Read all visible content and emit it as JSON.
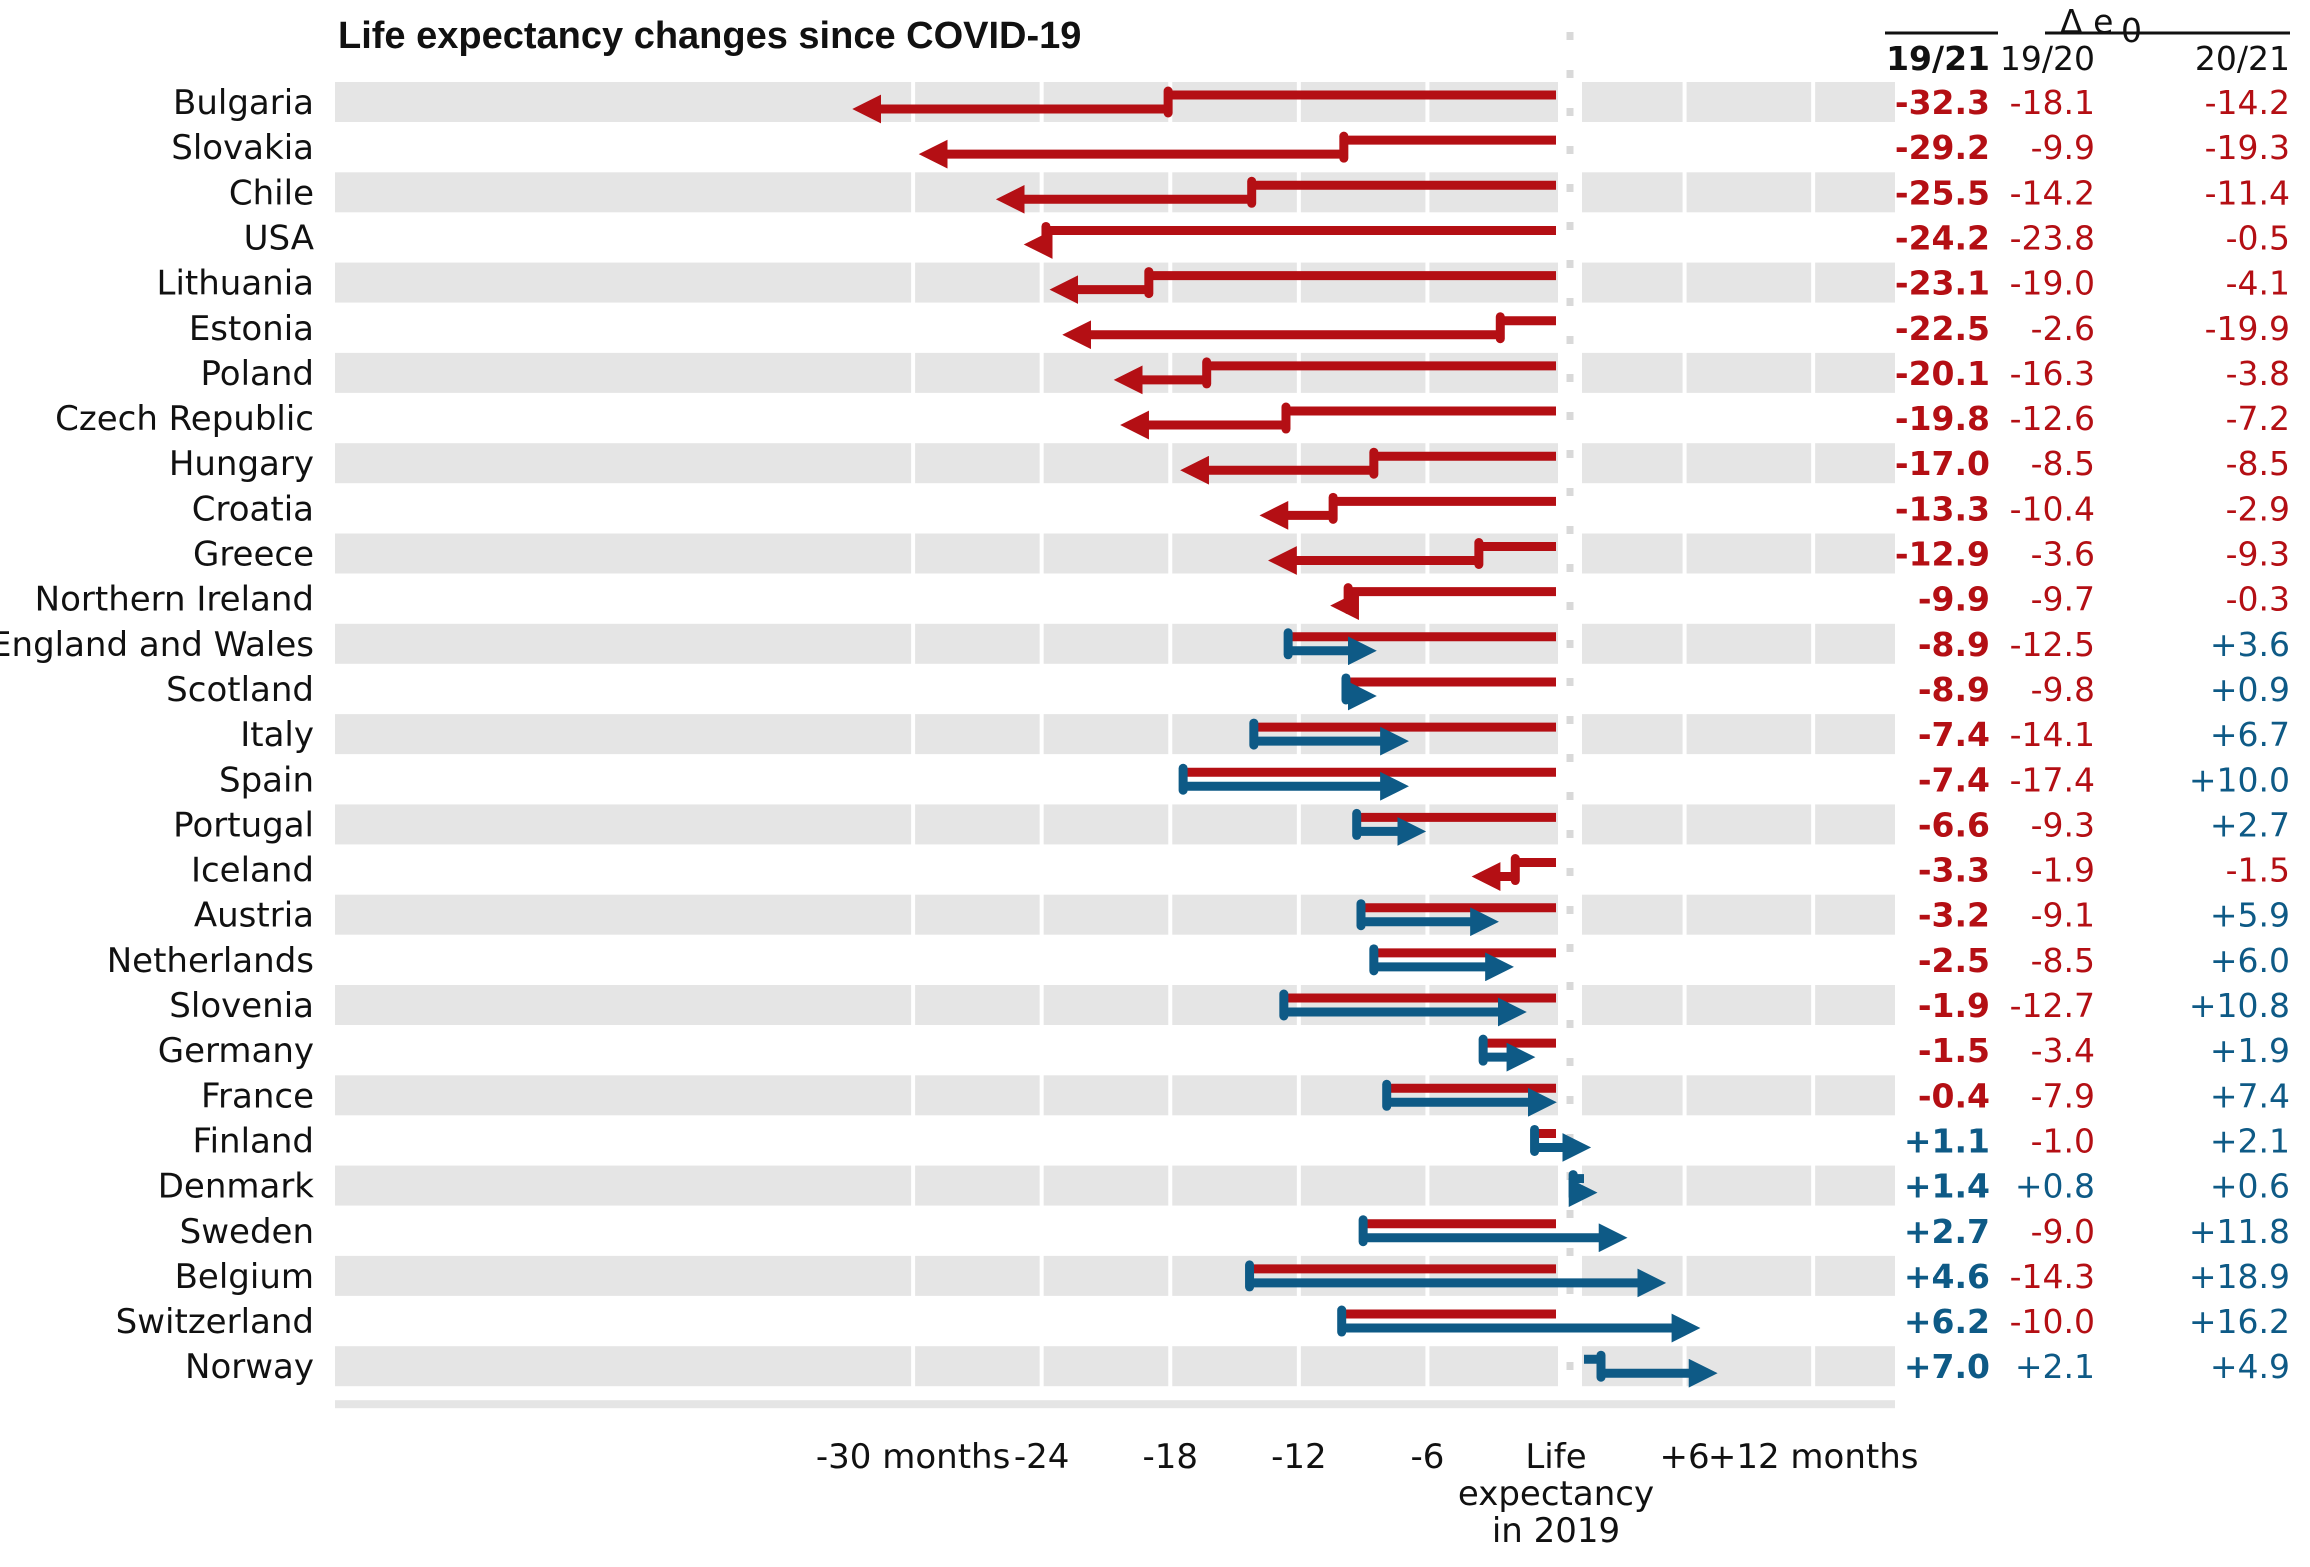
{
  "chart_data": {
    "type": "bar",
    "title": "Life expectancy changes since COVID-19",
    "x_ticks": [
      "-30 months",
      "-24",
      "-18",
      "-12",
      "-6",
      "+6",
      "+12 months"
    ],
    "x_tick_values": [
      -30,
      -24,
      -18,
      -12,
      -6,
      6,
      12
    ],
    "center_label": [
      "Life",
      "expectancy",
      "in 2019"
    ],
    "xlim": [
      -34,
      20
    ],
    "table_headers": {
      "group": "Δ e",
      "group_sub": "0",
      "total": "19/21",
      "first": "19/20",
      "second": "20/21"
    },
    "colors": {
      "decrease": "#b40f14",
      "increase": "#0e5a86",
      "stripe": "#e5e5e5",
      "grid": "#ffffff"
    },
    "countries": [
      {
        "name": "Bulgaria",
        "total": "-32.3",
        "d1920": "-18.1",
        "d2021": "-14.2"
      },
      {
        "name": "Slovakia",
        "total": "-29.2",
        "d1920": "-9.9",
        "d2021": "-19.3"
      },
      {
        "name": "Chile",
        "total": "-25.5",
        "d1920": "-14.2",
        "d2021": "-11.4"
      },
      {
        "name": "USA",
        "total": "-24.2",
        "d1920": "-23.8",
        "d2021": "-0.5"
      },
      {
        "name": "Lithuania",
        "total": "-23.1",
        "d1920": "-19.0",
        "d2021": "-4.1"
      },
      {
        "name": "Estonia",
        "total": "-22.5",
        "d1920": "-2.6",
        "d2021": "-19.9"
      },
      {
        "name": "Poland",
        "total": "-20.1",
        "d1920": "-16.3",
        "d2021": "-3.8"
      },
      {
        "name": "Czech Republic",
        "total": "-19.8",
        "d1920": "-12.6",
        "d2021": "-7.2"
      },
      {
        "name": "Hungary",
        "total": "-17.0",
        "d1920": "-8.5",
        "d2021": "-8.5"
      },
      {
        "name": "Croatia",
        "total": "-13.3",
        "d1920": "-10.4",
        "d2021": "-2.9"
      },
      {
        "name": "Greece",
        "total": "-12.9",
        "d1920": "-3.6",
        "d2021": "-9.3"
      },
      {
        "name": "Northern Ireland",
        "total": "-9.9",
        "d1920": "-9.7",
        "d2021": "-0.3"
      },
      {
        "name": "England and Wales",
        "total": "-8.9",
        "d1920": "-12.5",
        "d2021": "+3.6"
      },
      {
        "name": "Scotland",
        "total": "-8.9",
        "d1920": "-9.8",
        "d2021": "+0.9"
      },
      {
        "name": "Italy",
        "total": "-7.4",
        "d1920": "-14.1",
        "d2021": "+6.7"
      },
      {
        "name": "Spain",
        "total": "-7.4",
        "d1920": "-17.4",
        "d2021": "+10.0"
      },
      {
        "name": "Portugal",
        "total": "-6.6",
        "d1920": "-9.3",
        "d2021": "+2.7"
      },
      {
        "name": "Iceland",
        "total": "-3.3",
        "d1920": "-1.9",
        "d2021": "-1.5"
      },
      {
        "name": "Austria",
        "total": "-3.2",
        "d1920": "-9.1",
        "d2021": "+5.9"
      },
      {
        "name": "Netherlands",
        "total": "-2.5",
        "d1920": "-8.5",
        "d2021": "+6.0"
      },
      {
        "name": "Slovenia",
        "total": "-1.9",
        "d1920": "-12.7",
        "d2021": "+10.8"
      },
      {
        "name": "Germany",
        "total": "-1.5",
        "d1920": "-3.4",
        "d2021": "+1.9"
      },
      {
        "name": "France",
        "total": "-0.4",
        "d1920": "-7.9",
        "d2021": "+7.4"
      },
      {
        "name": "Finland",
        "total": "+1.1",
        "d1920": "-1.0",
        "d2021": "+2.1"
      },
      {
        "name": "Denmark",
        "total": "+1.4",
        "d1920": "+0.8",
        "d2021": "+0.6"
      },
      {
        "name": "Sweden",
        "total": "+2.7",
        "d1920": "-9.0",
        "d2021": "+11.8"
      },
      {
        "name": "Belgium",
        "total": "+4.6",
        "d1920": "-14.3",
        "d2021": "+18.9"
      },
      {
        "name": "Switzerland",
        "total": "+6.2",
        "d1920": "-10.0",
        "d2021": "+16.2"
      },
      {
        "name": "Norway",
        "total": "+7.0",
        "d1920": "+2.1",
        "d2021": "+4.9"
      }
    ]
  }
}
